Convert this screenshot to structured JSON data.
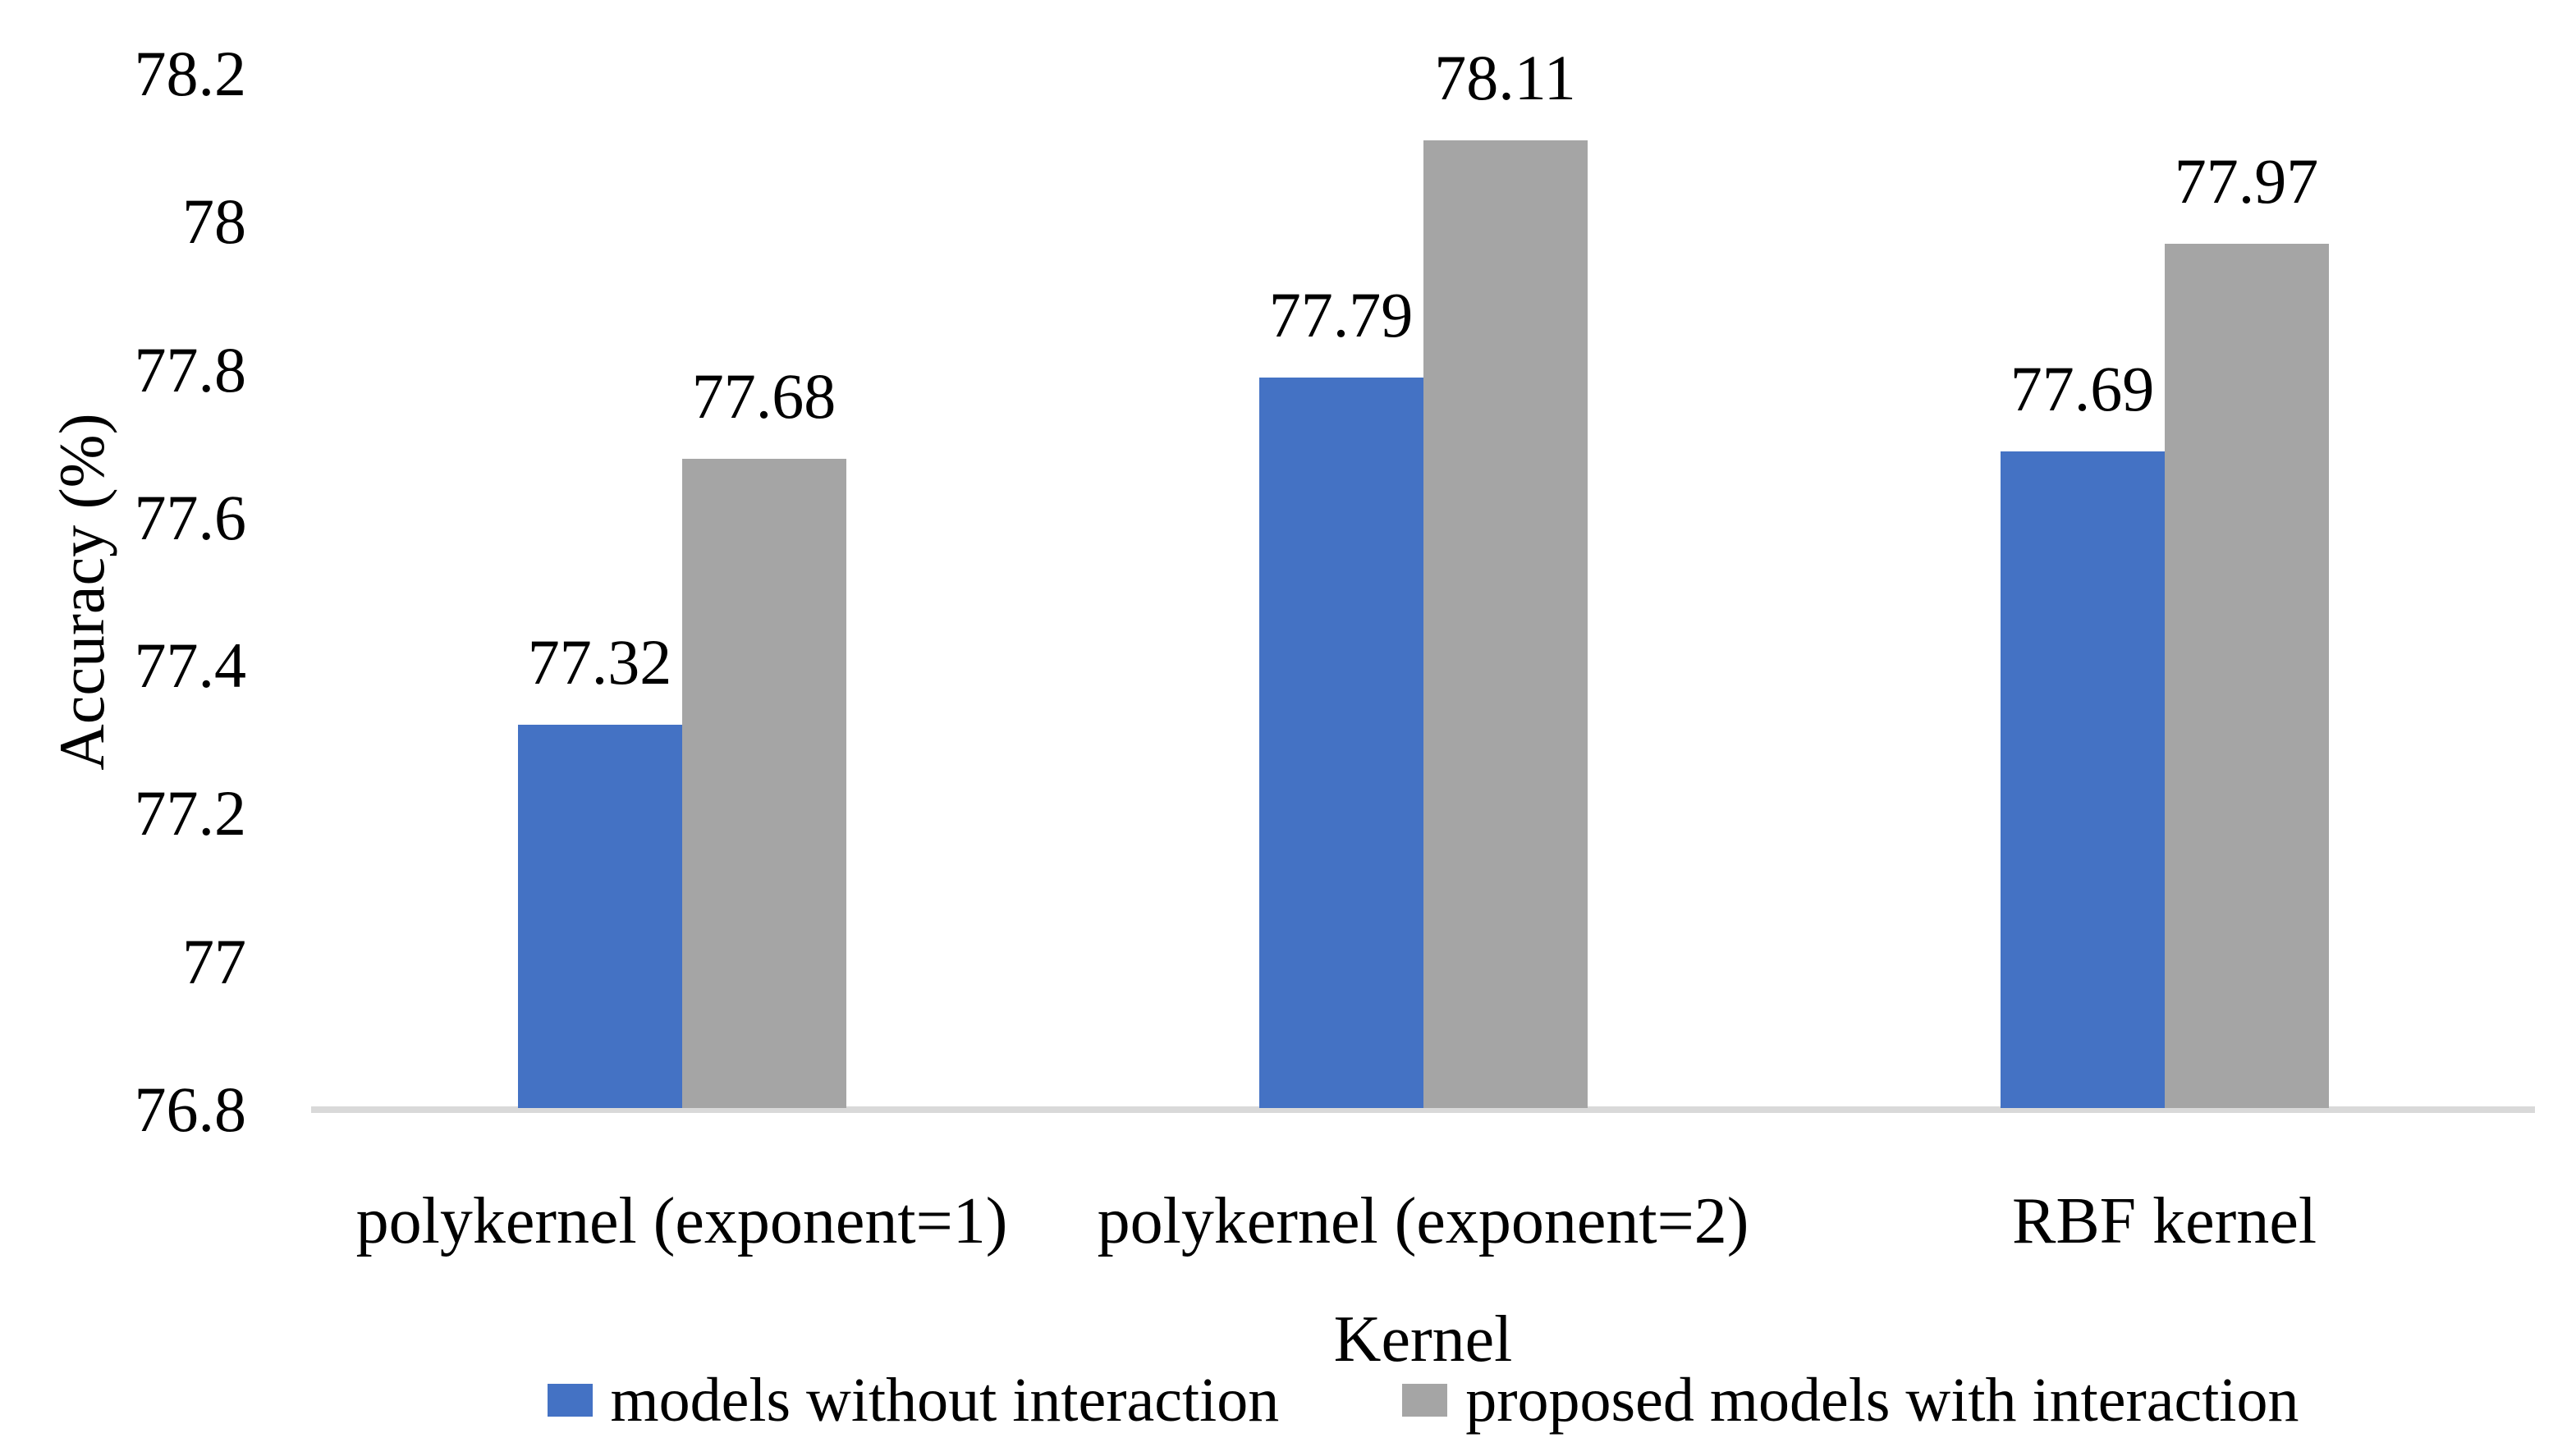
{
  "chart_data": {
    "type": "bar",
    "title": "",
    "categories": [
      "polykernel (exponent=1)",
      "polykernel (exponent=2)",
      "RBF kernel"
    ],
    "series": [
      {
        "name": "models without interaction",
        "color": "#4472C4",
        "values": [
          77.32,
          77.79,
          77.69
        ]
      },
      {
        "name": "proposed models with interaction",
        "color": "#A5A5A5",
        "values": [
          77.68,
          78.11,
          77.97
        ]
      }
    ],
    "data_labels": [
      [
        "77.32",
        "77.79",
        "77.69"
      ],
      [
        "77.68",
        "78.11",
        "77.97"
      ]
    ],
    "xlabel": "Kernel",
    "ylabel": "Accuracy (%)",
    "ylim": [
      76.8,
      78.2
    ],
    "yticks": [
      76.8,
      77.0,
      77.2,
      77.4,
      77.6,
      77.8,
      78.0,
      78.2
    ],
    "ytick_labels": [
      "76.8",
      "77",
      "77.2",
      "77.4",
      "77.6",
      "77.8",
      "78",
      "78.2"
    ],
    "grid": false,
    "legend_position": "bottom",
    "axis_line_color": "#D9D9D9",
    "text_color": "#000000",
    "background_color": "#FFFFFF"
  }
}
